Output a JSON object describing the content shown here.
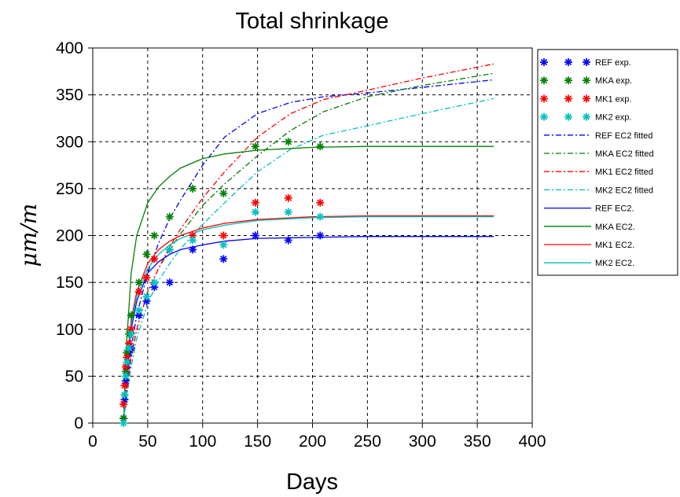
{
  "chart_data": {
    "type": "line",
    "title": "Total shrinkage",
    "xlabel": "Days",
    "ylabel": "μm/m",
    "xlim": [
      0,
      400
    ],
    "ylim": [
      0,
      400
    ],
    "xticks": [
      0,
      50,
      100,
      150,
      200,
      250,
      300,
      350,
      400
    ],
    "yticks": [
      0,
      50,
      100,
      150,
      200,
      250,
      300,
      350,
      400
    ],
    "grid": true,
    "legend_position": "right",
    "series": [
      {
        "name": "REF exp.",
        "kind": "marker",
        "color": "#0000ff",
        "x": [
          28,
          29,
          30,
          31,
          33,
          35,
          42,
          49,
          56,
          70,
          91,
          119,
          148,
          178,
          207
        ],
        "y": [
          5,
          25,
          45,
          60,
          75,
          80,
          115,
          130,
          145,
          150,
          185,
          175,
          200,
          195,
          200
        ]
      },
      {
        "name": "MKA exp.",
        "kind": "marker",
        "color": "#008000",
        "x": [
          28,
          29,
          30,
          31,
          33,
          35,
          42,
          49,
          56,
          70,
          91,
          119,
          148,
          178,
          207
        ],
        "y": [
          5,
          30,
          55,
          75,
          95,
          115,
          150,
          180,
          200,
          220,
          250,
          245,
          295,
          300,
          295
        ]
      },
      {
        "name": "MK1 exp.",
        "kind": "marker",
        "color": "#ff0000",
        "x": [
          28,
          29,
          30,
          31,
          33,
          35,
          42,
          49,
          56,
          70,
          91,
          119,
          148,
          178,
          207
        ],
        "y": [
          20,
          40,
          60,
          70,
          85,
          100,
          140,
          155,
          175,
          185,
          200,
          200,
          235,
          240,
          235
        ]
      },
      {
        "name": "MK2 exp.",
        "kind": "marker",
        "color": "#00c0c0",
        "x": [
          28,
          29,
          30,
          31,
          33,
          35,
          42,
          49,
          56,
          70,
          91,
          119,
          148,
          178,
          207
        ],
        "y": [
          0,
          30,
          50,
          65,
          80,
          95,
          120,
          135,
          150,
          185,
          195,
          190,
          225,
          225,
          220
        ]
      },
      {
        "name": "REF EC2 fitted",
        "kind": "dashdot",
        "color": "#0000ff",
        "x": [
          28,
          30,
          35,
          40,
          50,
          60,
          70,
          80,
          100,
          120,
          150,
          180,
          210,
          250,
          300,
          365
        ],
        "y": [
          0,
          30,
          80,
          115,
          160,
          192,
          218,
          238,
          275,
          305,
          330,
          342,
          348,
          352,
          358,
          366
        ]
      },
      {
        "name": "MKA EC2 fitted",
        "kind": "dashdot",
        "color": "#008000",
        "x": [
          28,
          30,
          35,
          40,
          50,
          60,
          70,
          80,
          100,
          120,
          150,
          180,
          210,
          250,
          300,
          365
        ],
        "y": [
          0,
          25,
          70,
          100,
          140,
          165,
          185,
          202,
          232,
          255,
          285,
          312,
          332,
          348,
          360,
          373
        ]
      },
      {
        "name": "MK1 EC2 fitted",
        "kind": "dashdot",
        "color": "#ff0000",
        "x": [
          28,
          30,
          35,
          40,
          50,
          60,
          70,
          80,
          100,
          120,
          150,
          180,
          210,
          250,
          300,
          365
        ],
        "y": [
          0,
          25,
          70,
          100,
          140,
          165,
          188,
          207,
          240,
          268,
          305,
          330,
          345,
          355,
          368,
          383
        ]
      },
      {
        "name": "MK2 EC2 fitted",
        "kind": "dashdot",
        "color": "#00c0c0",
        "x": [
          28,
          30,
          35,
          40,
          50,
          60,
          70,
          80,
          100,
          120,
          150,
          180,
          210,
          250,
          300,
          365
        ],
        "y": [
          0,
          20,
          60,
          90,
          128,
          152,
          170,
          186,
          212,
          235,
          268,
          292,
          307,
          317,
          330,
          346
        ]
      },
      {
        "name": "REF EC2.",
        "kind": "solid",
        "color": "#0000ff",
        "x": [
          28,
          30,
          35,
          40,
          50,
          60,
          70,
          80,
          100,
          120,
          150,
          200,
          250,
          300,
          365
        ],
        "y": [
          0,
          40,
          100,
          130,
          160,
          172,
          180,
          185,
          190,
          194,
          197,
          198,
          199,
          199,
          199
        ]
      },
      {
        "name": "MKA EC2.",
        "kind": "solid",
        "color": "#008000",
        "x": [
          28,
          30,
          35,
          40,
          50,
          60,
          70,
          80,
          100,
          120,
          150,
          200,
          250,
          300,
          365
        ],
        "y": [
          0,
          70,
          160,
          200,
          235,
          252,
          263,
          272,
          282,
          287,
          291,
          294,
          295,
          295,
          295
        ]
      },
      {
        "name": "MK1 EC2.",
        "kind": "solid",
        "color": "#ff0000",
        "x": [
          28,
          30,
          35,
          40,
          50,
          60,
          70,
          80,
          100,
          120,
          150,
          200,
          250,
          300,
          365
        ],
        "y": [
          0,
          45,
          110,
          140,
          170,
          185,
          194,
          200,
          208,
          213,
          217,
          220,
          221,
          221,
          221
        ]
      },
      {
        "name": "MK2 EC2.",
        "kind": "solid",
        "color": "#00c0c0",
        "x": [
          28,
          30,
          35,
          40,
          50,
          60,
          70,
          80,
          100,
          120,
          150,
          200,
          250,
          300,
          365
        ],
        "y": [
          0,
          42,
          105,
          135,
          165,
          180,
          190,
          197,
          206,
          211,
          216,
          219,
          220,
          220,
          220
        ]
      }
    ]
  }
}
